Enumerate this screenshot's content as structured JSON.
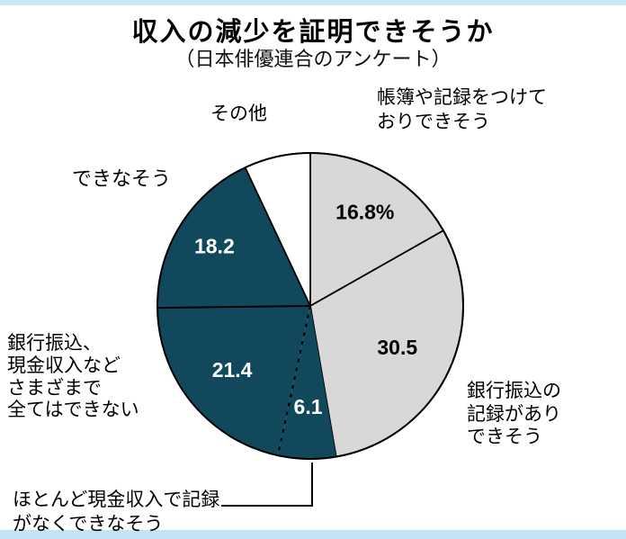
{
  "chart_data": {
    "type": "pie",
    "title": "収入の減少を証明できそうか",
    "subtitle": "（日本俳優連合のアンケート）",
    "start_angle_deg": 0,
    "direction": "clockwise",
    "unit": "%",
    "slices": [
      {
        "label": "帳簿や記録をつけて\nおりできそう",
        "value": 16.8,
        "display_value": "16.8%",
        "color": "#d8d8d8",
        "value_color": "#000000",
        "outlined": true
      },
      {
        "label": "銀行振込の\n記録があり\nできそう",
        "value": 30.5,
        "display_value": "30.5",
        "color": "#d8d8d8",
        "value_color": "#000000",
        "outlined": true
      },
      {
        "label": "ほとんど現金収入で記録\nがなくできなそう",
        "value": 6.1,
        "display_value": "6.1",
        "color": "#11485c",
        "value_color": "#ffffff",
        "outlined": false
      },
      {
        "label": "銀行振込、\n現金収入など\nさまざまで\n全てはできない",
        "value": 21.4,
        "display_value": "21.4",
        "color": "#11485c",
        "value_color": "#ffffff",
        "outlined": false
      },
      {
        "label": "できなそう",
        "value": 18.2,
        "display_value": "18.2",
        "color": "#11485c",
        "value_color": "#ffffff",
        "outlined": false
      },
      {
        "label": "その他",
        "value": 7.0,
        "display_value": "",
        "color": "#ffffff",
        "value_color": "#000000",
        "outlined": true
      }
    ],
    "colors": {
      "can_prove": "#d8d8d8",
      "cannot_prove": "#11485c",
      "other": "#ffffff",
      "outline": "#000000",
      "edge_strip": "#c3e4f4"
    },
    "legend_position": "none",
    "labels_outside": true
  }
}
